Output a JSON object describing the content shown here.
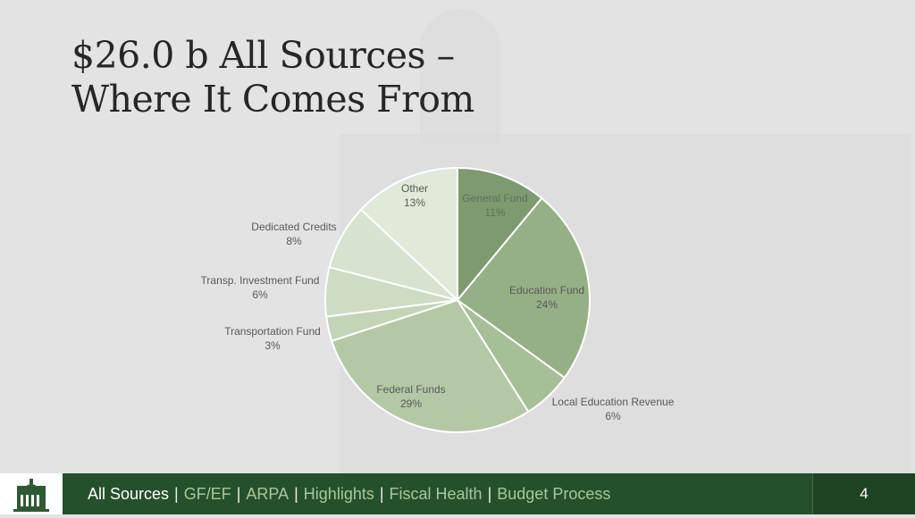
{
  "title": {
    "line1": "$26.0 b All Sources –",
    "line2": "Where It Comes From"
  },
  "chart_data": {
    "type": "pie",
    "title": "",
    "slices": [
      {
        "label": "General Fund",
        "value": 11,
        "display": "11%",
        "color": "#7e9a6f"
      },
      {
        "label": "Education Fund",
        "value": 24,
        "display": "24%",
        "color": "#96b086"
      },
      {
        "label": "Local Education Revenue",
        "value": 6,
        "display": "6%",
        "color": "#a6bf97"
      },
      {
        "label": "Federal Funds",
        "value": 29,
        "display": "29%",
        "color": "#b3c9a5"
      },
      {
        "label": "Transportation Fund",
        "value": 3,
        "display": "3%",
        "color": "#c2d5b6"
      },
      {
        "label": "Transp. Investment Fund",
        "value": 6,
        "display": "6%",
        "color": "#cddcc3"
      },
      {
        "label": "Dedicated Credits",
        "value": 8,
        "display": "8%",
        "color": "#d7e3cf"
      },
      {
        "label": "Other",
        "value": 13,
        "display": "13%",
        "color": "#e1ead9"
      }
    ],
    "start_angle_deg": 0,
    "direction": "clockwise"
  },
  "footer": {
    "nav": [
      {
        "label": "All Sources",
        "active": true
      },
      {
        "label": "GF/EF",
        "active": false
      },
      {
        "label": "ARPA",
        "active": false
      },
      {
        "label": "Highlights",
        "active": false
      },
      {
        "label": "Fiscal Health",
        "active": false
      },
      {
        "label": "Budget Process",
        "active": false
      }
    ],
    "separator": "|",
    "page_number": "4"
  },
  "colors": {
    "footer_bg": "#25502c",
    "page_box_bg": "#1f4425",
    "nav_active": "#ffffff",
    "nav_inactive": "#a9c79a",
    "background": "#e3e3e3"
  }
}
